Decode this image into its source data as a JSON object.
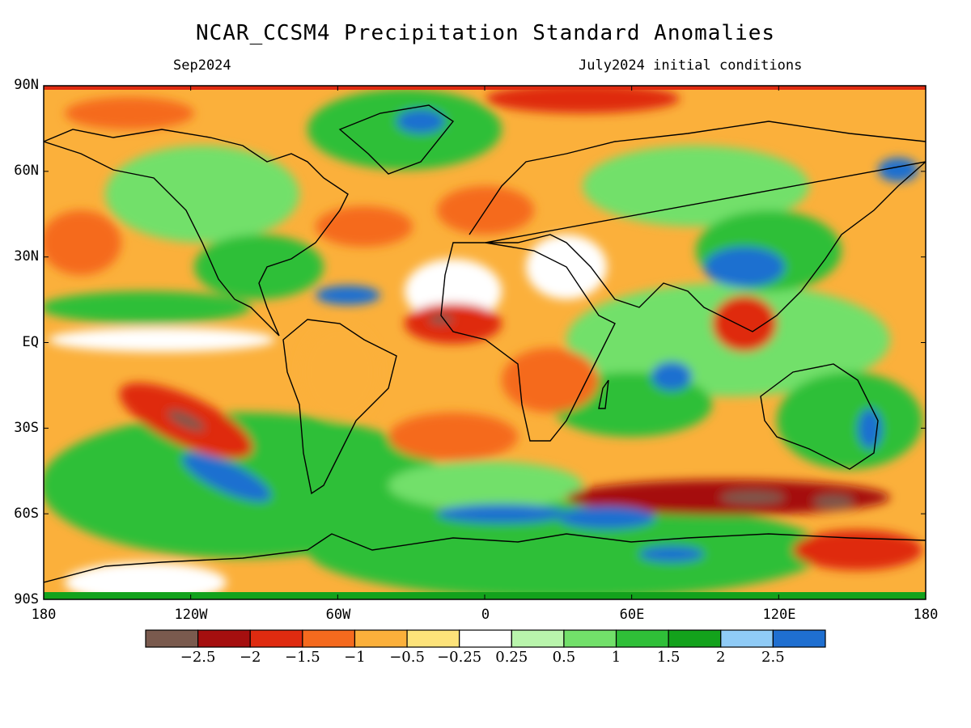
{
  "header": {
    "title": "NCAR_CCSM4 Precipitation Standard Anomalies",
    "valid_month": "Sep2024",
    "init_conditions": "July2024 initial conditions"
  },
  "axes": {
    "lat_labels": [
      "90N",
      "60N",
      "30N",
      "EQ",
      "30S",
      "60S",
      "90S"
    ],
    "lon_labels": [
      "180",
      "120W",
      "60W",
      "0",
      "60E",
      "120E",
      "180"
    ]
  },
  "colorbar": {
    "labels": [
      "-2.5",
      "-2",
      "-1.5",
      "-1",
      "-0.5",
      "-0.25",
      "0.25",
      "0.5",
      "1",
      "1.5",
      "2",
      "2.5"
    ],
    "colors": [
      "#7a5a4e",
      "#a50f0f",
      "#df2b10",
      "#f56a1e",
      "#fbb03b",
      "#fde37a",
      "#ffffff",
      "#b9f5ac",
      "#72e06a",
      "#2fbf38",
      "#13a21c",
      "#8fcbf6",
      "#1f6fd0"
    ]
  }
}
